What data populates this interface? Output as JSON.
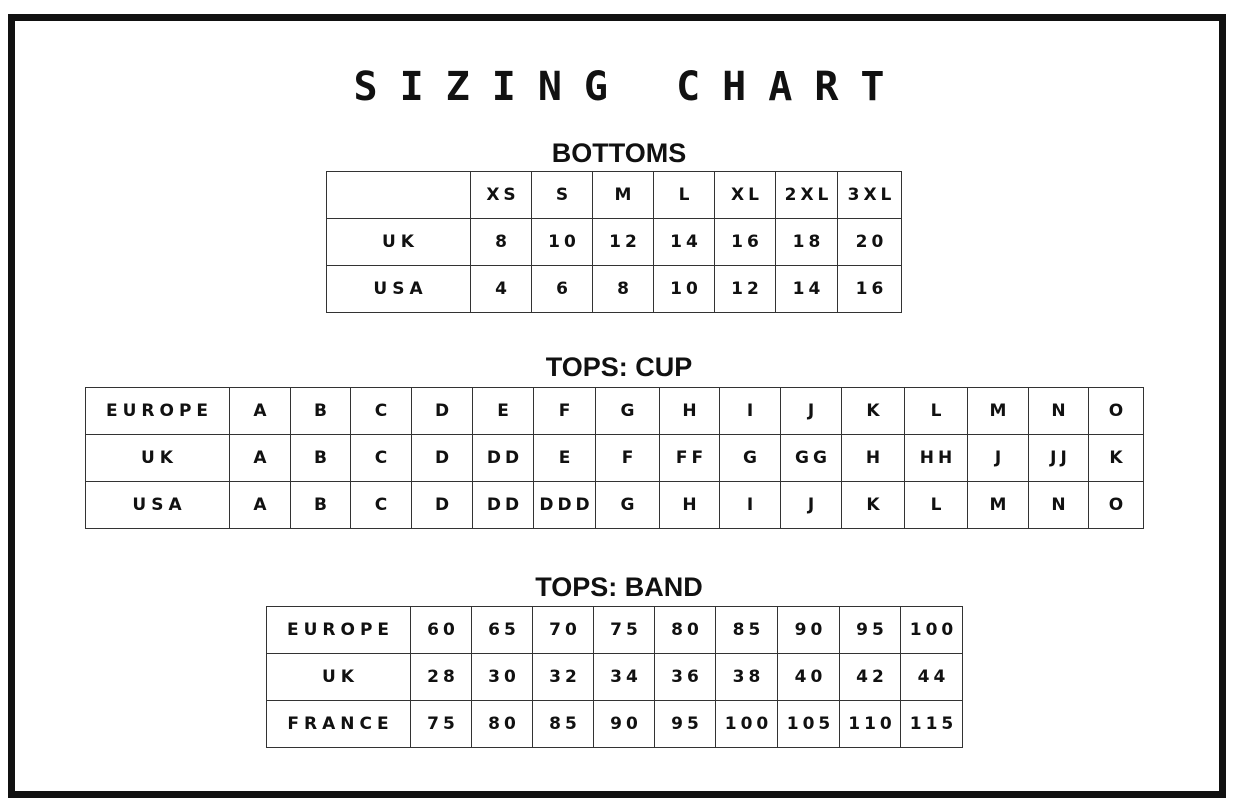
{
  "title": "SIZING CHART",
  "tables": [
    {
      "heading": "BOTTOMS",
      "rows": [
        [
          "",
          "XS",
          "S",
          "M",
          "L",
          "XL",
          "2XL",
          "3XL"
        ],
        [
          "UK",
          "8",
          "10",
          "12",
          "14",
          "16",
          "18",
          "20"
        ],
        [
          "USA",
          "4",
          "6",
          "8",
          "10",
          "12",
          "14",
          "16"
        ]
      ]
    },
    {
      "heading": "TOPS: CUP",
      "rows": [
        [
          "EUROPE",
          "A",
          "B",
          "C",
          "D",
          "E",
          "F",
          "G",
          "H",
          "I",
          "J",
          "K",
          "L",
          "M",
          "N",
          "O"
        ],
        [
          "UK",
          "A",
          "B",
          "C",
          "D",
          "DD",
          "E",
          "F",
          "FF",
          "G",
          "GG",
          "H",
          "HH",
          "J",
          "JJ",
          "K"
        ],
        [
          "USA",
          "A",
          "B",
          "C",
          "D",
          "DD",
          "DDD",
          "G",
          "H",
          "I",
          "J",
          "K",
          "L",
          "M",
          "N",
          "O"
        ]
      ]
    },
    {
      "heading": "TOPS: BAND",
      "rows": [
        [
          "EUROPE",
          "60",
          "65",
          "70",
          "75",
          "80",
          "85",
          "90",
          "95",
          "100"
        ],
        [
          "UK",
          "28",
          "30",
          "32",
          "34",
          "36",
          "38",
          "40",
          "42",
          "44"
        ],
        [
          "FRANCE",
          "75",
          "80",
          "85",
          "90",
          "95",
          "100",
          "105",
          "110",
          "115"
        ]
      ]
    }
  ]
}
